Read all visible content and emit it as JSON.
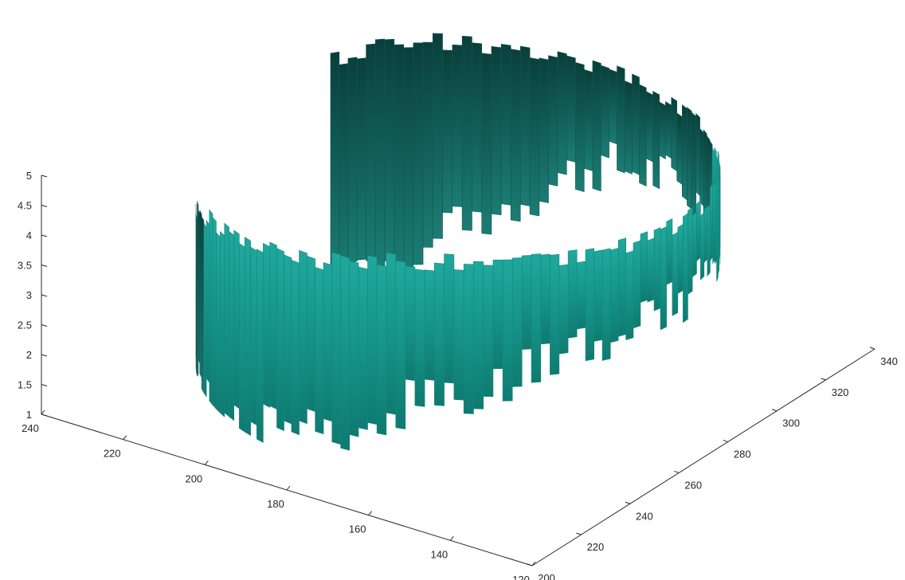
{
  "chart_data": {
    "type": "surface",
    "title": "",
    "xlabel": "",
    "ylabel": "",
    "zlabel": "",
    "colors": {
      "surface_light": "#1fa399",
      "surface_mid": "#168a80",
      "surface_dark": "#0c4a45",
      "axis": "#262626"
    },
    "x_axis": {
      "ticks": [
        120,
        140,
        160,
        180,
        200,
        220,
        240
      ],
      "range": [
        120,
        240
      ]
    },
    "y_axis": {
      "ticks": [
        200,
        220,
        240,
        260,
        280,
        300,
        320,
        340
      ],
      "range": [
        200,
        340
      ]
    },
    "z_axis": {
      "ticks": [
        "1",
        "1.5",
        "2",
        "2.5",
        "3",
        "3.5",
        "4",
        "4.5",
        "5"
      ],
      "range": [
        1,
        5
      ]
    },
    "shape": "ring",
    "ring_center": {
      "x": 180,
      "y": 270
    },
    "ring_radius": {
      "x": 55,
      "y": 55
    },
    "ring_opening": "front (facing viewer)",
    "z_profile": {
      "angles_deg": [
        30,
        50,
        70,
        90,
        110,
        130,
        150,
        170,
        190,
        210,
        230,
        250,
        270,
        290,
        310,
        330
      ],
      "z_min": [
        1.0,
        1.3,
        2.2,
        3.2,
        3.5,
        3.6,
        3.7,
        3.6,
        3.5,
        3.3,
        2.8,
        2.4,
        1.6,
        1.2,
        1.0,
        1.0
      ],
      "z_max": [
        4.8,
        5.0,
        5.0,
        5.0,
        5.0,
        5.0,
        5.0,
        5.0,
        5.0,
        5.0,
        5.0,
        4.9,
        4.6,
        4.4,
        4.2,
        3.8
      ]
    }
  }
}
